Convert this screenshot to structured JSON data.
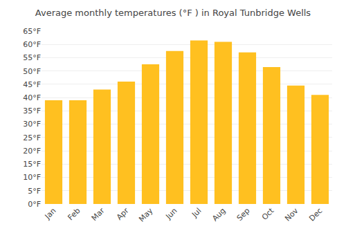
{
  "chart_data": {
    "type": "bar",
    "title": "Average monthly temperatures (°F ) in Royal Tunbridge Wells",
    "categories": [
      "Jan",
      "Feb",
      "Mar",
      "Apr",
      "May",
      "Jun",
      "Jul",
      "Aug",
      "Sep",
      "Oct",
      "Nov",
      "Dec"
    ],
    "values": [
      39,
      39,
      43,
      46,
      52.5,
      57.5,
      61.5,
      61,
      57,
      51.5,
      44.5,
      41
    ],
    "color": "#FFC020",
    "ylim": [
      0,
      65
    ],
    "yticks": [
      {
        "value": 0,
        "label": "0°F"
      },
      {
        "value": 5,
        "label": "5°F"
      },
      {
        "value": 10,
        "label": "10°F"
      },
      {
        "value": 15,
        "label": "15°F"
      },
      {
        "value": 20,
        "label": "20°F"
      },
      {
        "value": 25,
        "label": "25°F"
      },
      {
        "value": 30,
        "label": "30°F"
      },
      {
        "value": 35,
        "label": "35°F"
      },
      {
        "value": 40,
        "label": "40°F"
      },
      {
        "value": 45,
        "label": "45°F"
      },
      {
        "value": 50,
        "label": "50°F"
      },
      {
        "value": 55,
        "label": "55°F"
      },
      {
        "value": 60,
        "label": "60°F"
      },
      {
        "value": 65,
        "label": "65°F"
      }
    ],
    "grid": true
  }
}
